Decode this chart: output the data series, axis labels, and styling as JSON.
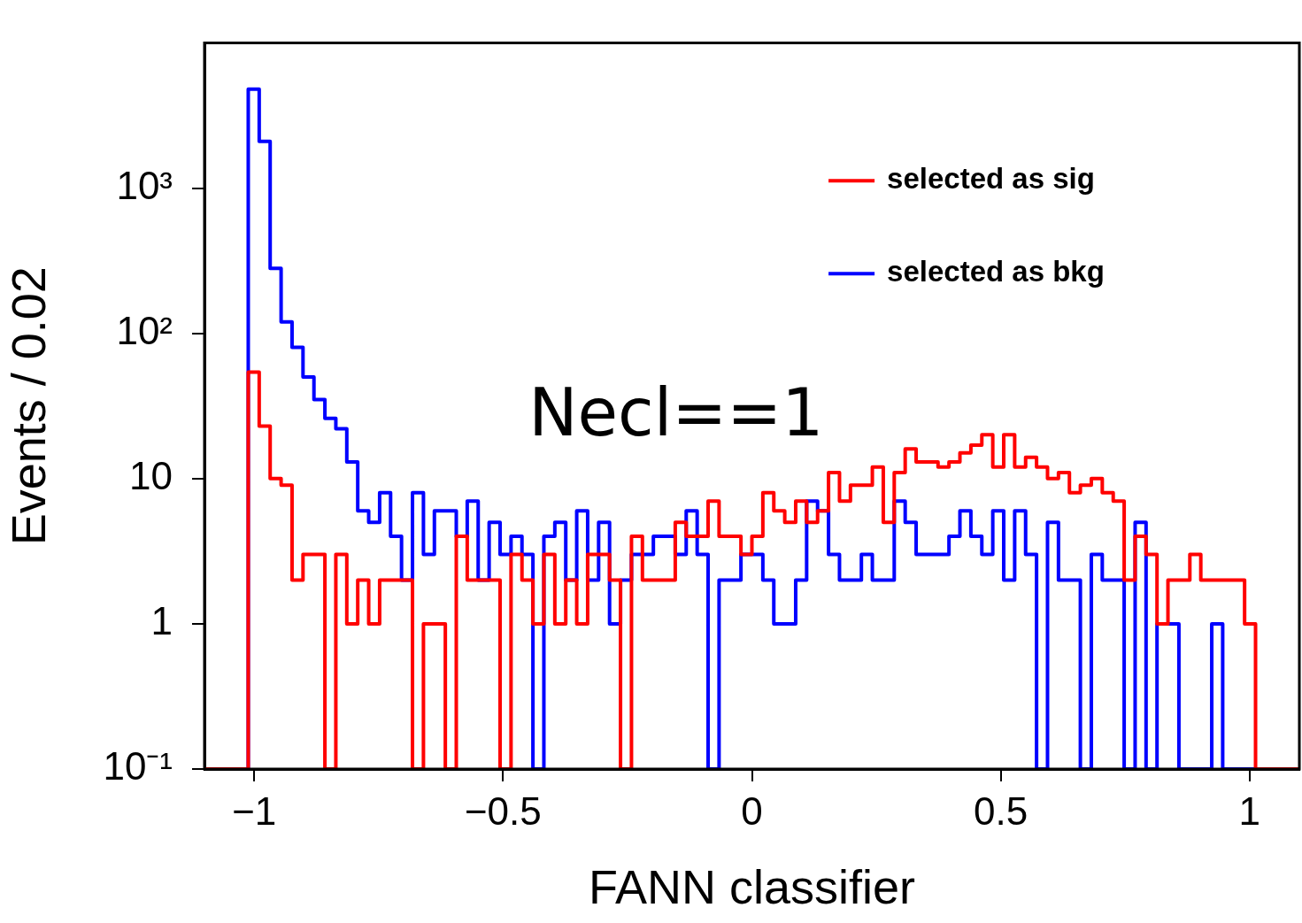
{
  "chart_data": {
    "type": "histogram",
    "xlabel": "FANN classifier",
    "ylabel": "Events / 0.02",
    "log": true,
    "legend": "top right",
    "xlim": [
      -1.1,
      1.1
    ],
    "ylim": [
      0.1,
      10000
    ],
    "xticks": [
      {
        "value": -1,
        "label": "−1"
      },
      {
        "value": -0.5,
        "label": "−0.5"
      },
      0,
      0.5,
      1
    ],
    "yticks": [
      {
        "value": 0.1,
        "label": "10⁻¹"
      },
      1,
      10,
      {
        "value": 100,
        "label": "10²"
      },
      {
        "value": 1000,
        "label": "10³"
      }
    ],
    "annotations": [
      "Necl==1"
    ],
    "bins": [
      -1.1,
      -1.078,
      -1.056,
      -1.034,
      -1.012,
      -0.99,
      -0.968,
      -0.946,
      -0.924,
      -0.902,
      -0.88,
      -0.858,
      -0.836,
      -0.814,
      -0.792,
      -0.77,
      -0.748,
      -0.726,
      -0.704,
      -0.682,
      -0.66,
      -0.638,
      -0.616,
      -0.594,
      -0.572,
      -0.55,
      -0.528,
      -0.506,
      -0.484,
      -0.462,
      -0.44,
      -0.418,
      -0.396,
      -0.374,
      -0.352,
      -0.33,
      -0.308,
      -0.286,
      -0.264,
      -0.242,
      -0.22,
      -0.198,
      -0.176,
      -0.154,
      -0.132,
      -0.11,
      -0.088,
      -0.066,
      -0.044,
      -0.022,
      0,
      0.022,
      0.044,
      0.066,
      0.088,
      0.11,
      0.132,
      0.154,
      0.176,
      0.198,
      0.22,
      0.242,
      0.264,
      0.286,
      0.308,
      0.33,
      0.352,
      0.374,
      0.396,
      0.418,
      0.44,
      0.462,
      0.484,
      0.506,
      0.528,
      0.55,
      0.572,
      0.594,
      0.616,
      0.638,
      0.66,
      0.682,
      0.704,
      0.726,
      0.748,
      0.77,
      0.792,
      0.814,
      0.836,
      0.858,
      0.88,
      0.902,
      0.924,
      0.946,
      0.968,
      0.99,
      1.012,
      1.034,
      1.056,
      1.078,
      1.1
    ],
    "series": [
      {
        "name": "selected as sig",
        "color": "#ff0000",
        "values": [
          null,
          null,
          null,
          null,
          54,
          23,
          10,
          9,
          2,
          3,
          3,
          null,
          3,
          1,
          2,
          1,
          2,
          2,
          2,
          null,
          1,
          1,
          null,
          4,
          2,
          2,
          2,
          null,
          3,
          2,
          1,
          3,
          1,
          2,
          1,
          3,
          3,
          2,
          null,
          4,
          2,
          2,
          2,
          5,
          4,
          4,
          7,
          4,
          4,
          3,
          4,
          8,
          6,
          5,
          7,
          5,
          6,
          11,
          7,
          9,
          9,
          12,
          5,
          11,
          16,
          13,
          13,
          12,
          13,
          15,
          17,
          20,
          12,
          20,
          12,
          14,
          12,
          10,
          11,
          8,
          9,
          10,
          8,
          7,
          2,
          4,
          3,
          1,
          2,
          2,
          3,
          2,
          2,
          2,
          2,
          1,
          null,
          null,
          null,
          null
        ]
      },
      {
        "name": "selected as bkg",
        "color": "#0000ff",
        "values": [
          null,
          null,
          null,
          null,
          4800,
          2100,
          280,
          120,
          80,
          50,
          35,
          26,
          22,
          13,
          6,
          5,
          8,
          4,
          2,
          8,
          3,
          6,
          6,
          4,
          7,
          2,
          5,
          3,
          4,
          3,
          null,
          4,
          5,
          2,
          6,
          2,
          5,
          1,
          2,
          3,
          3,
          4,
          4,
          3,
          6,
          3,
          null,
          2,
          2,
          3,
          3,
          2,
          1,
          1,
          2,
          7,
          6,
          3,
          2,
          2,
          3,
          2,
          2,
          7,
          5,
          3,
          3,
          3,
          4,
          6,
          4,
          3,
          6,
          2,
          6,
          3,
          null,
          5,
          2,
          2,
          null,
          3,
          2,
          2,
          null,
          5,
          null,
          1,
          1,
          null,
          null,
          null,
          1,
          null,
          null,
          null,
          null,
          null,
          null,
          null
        ]
      }
    ]
  }
}
